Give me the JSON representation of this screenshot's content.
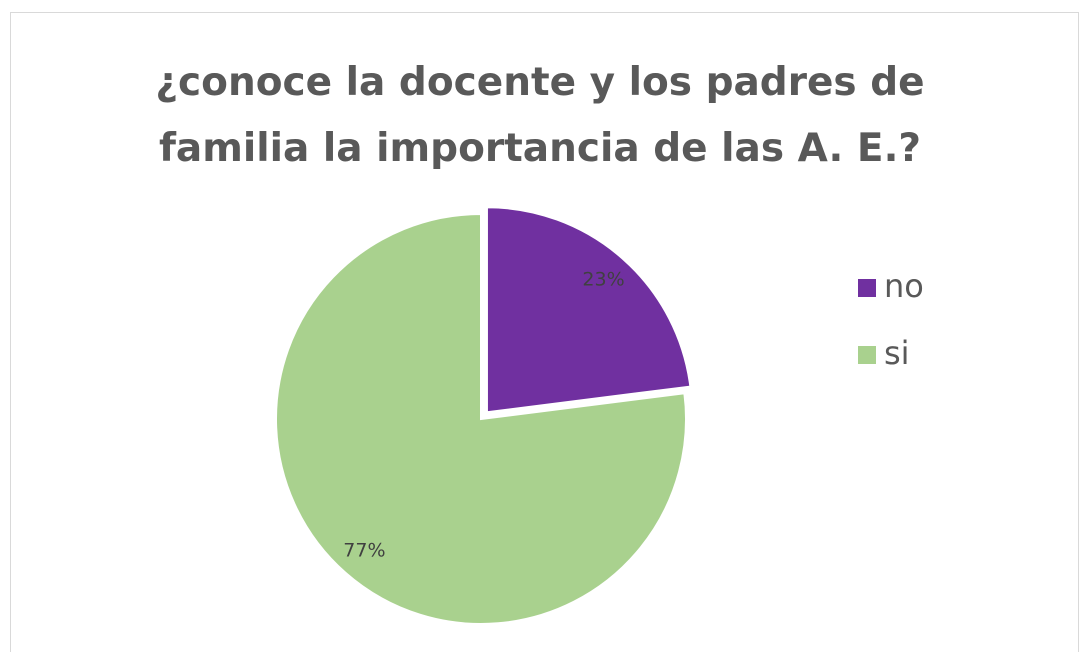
{
  "chart_data": {
    "type": "pie",
    "title": "¿conoce la docente y los padres de familia la importancia de las A. E.?",
    "categories": [
      "no",
      "si"
    ],
    "values": [
      23,
      77
    ],
    "value_labels": [
      "23%",
      "77%"
    ],
    "colors": [
      "#7030a0",
      "#a9d18e"
    ],
    "legend": "right"
  }
}
